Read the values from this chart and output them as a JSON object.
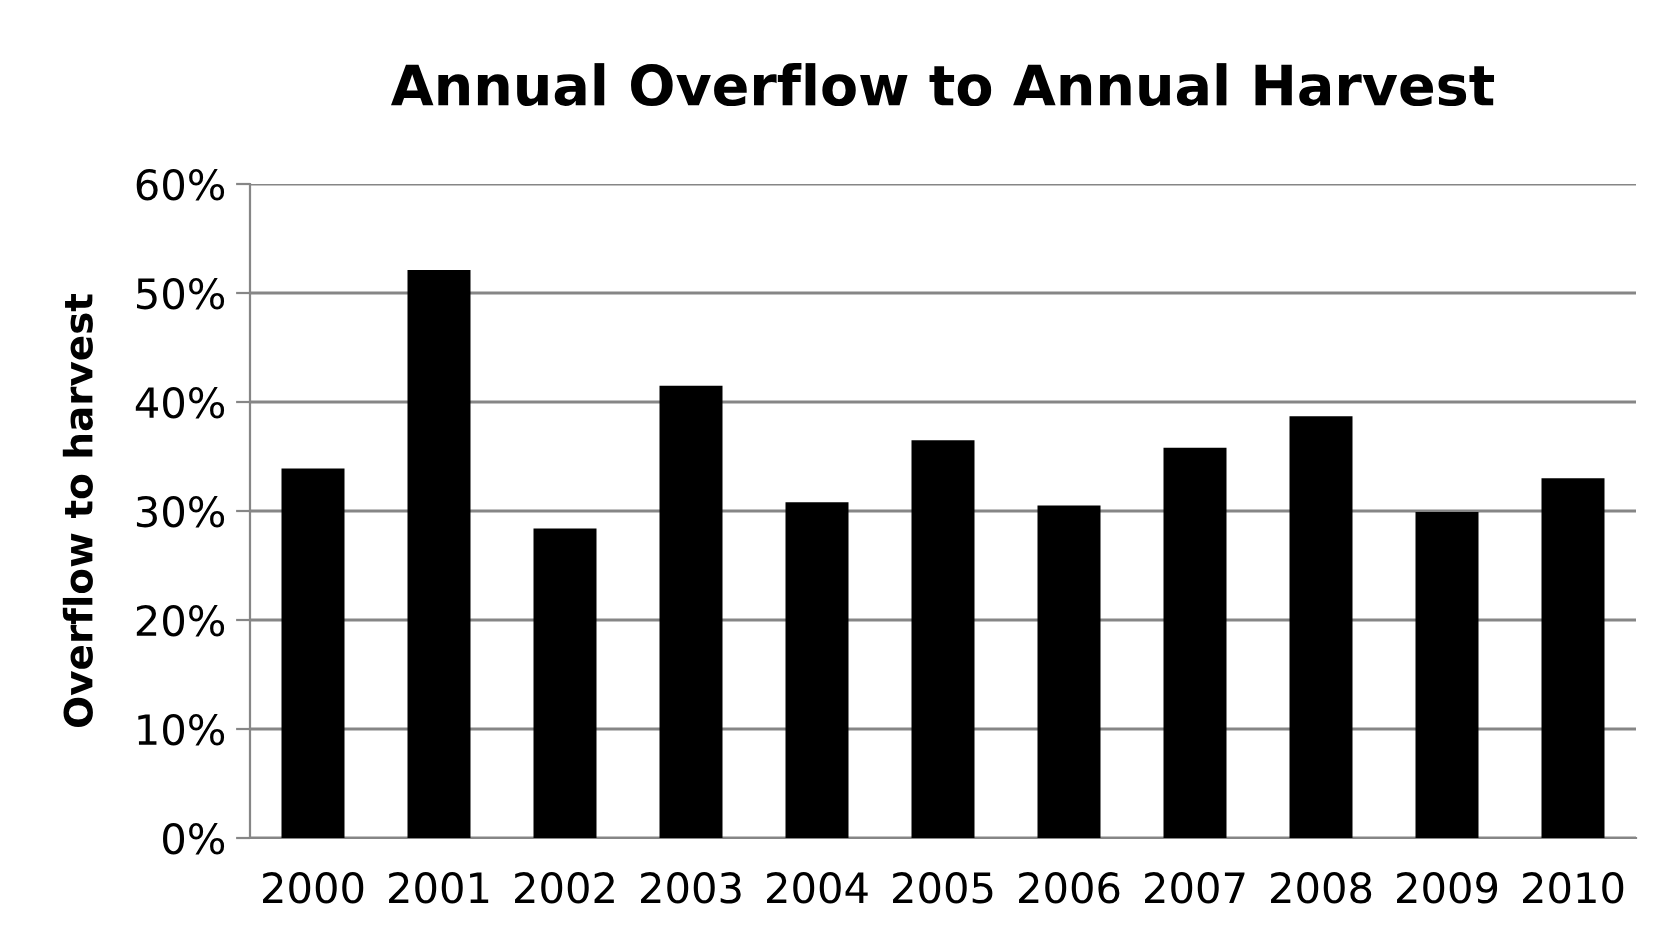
{
  "chart_data": {
    "type": "bar",
    "title": "Annual Overflow to Annual Harvest",
    "ylabel": "Overflow to harvest",
    "categories": [
      "2000",
      "2001",
      "2002",
      "2003",
      "2004",
      "2005",
      "2006",
      "2007",
      "2008",
      "2009",
      "2010"
    ],
    "values": [
      33.9,
      52.1,
      28.4,
      41.5,
      30.8,
      36.5,
      30.5,
      35.8,
      38.7,
      29.9,
      33.0
    ],
    "color": "#000000",
    "ylim": [
      0,
      60
    ],
    "yticks": [
      {
        "value": 0,
        "label": "0%"
      },
      {
        "value": 10,
        "label": "10%"
      },
      {
        "value": 20,
        "label": "20%"
      },
      {
        "value": 30,
        "label": "30%"
      },
      {
        "value": 40,
        "label": "40%"
      },
      {
        "value": 50,
        "label": "50%"
      },
      {
        "value": 60,
        "label": "60%"
      }
    ],
    "grid": "y",
    "legend": false
  }
}
